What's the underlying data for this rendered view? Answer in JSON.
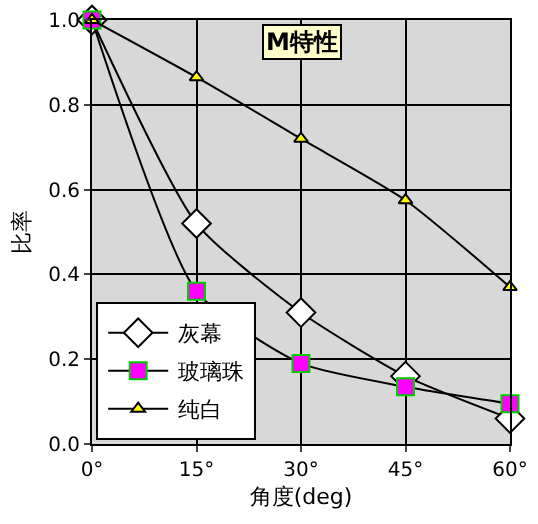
{
  "chart_data": {
    "type": "line",
    "title": "M特性",
    "xlabel": "角度(deg)",
    "ylabel": "比率",
    "x": [
      0,
      15,
      30,
      45,
      60
    ],
    "xlim": [
      0,
      60
    ],
    "xticks": [
      {
        "value": 0,
        "label": "0°"
      },
      {
        "value": 15,
        "label": "15°"
      },
      {
        "value": 30,
        "label": "30°"
      },
      {
        "value": 45,
        "label": "45°"
      },
      {
        "value": 60,
        "label": "60°"
      }
    ],
    "ylim": [
      0,
      1
    ],
    "yticks": [
      {
        "value": 0,
        "label": "0.0"
      },
      {
        "value": 0.2,
        "label": "0.2"
      },
      {
        "value": 0.4,
        "label": "0.4"
      },
      {
        "value": 0.6,
        "label": "0.6"
      },
      {
        "value": 0.8,
        "label": "0.8"
      },
      {
        "value": 1,
        "label": "1.0"
      }
    ],
    "grid": true,
    "legend": "bottom left",
    "line_style": "solid",
    "series": [
      {
        "name": "灰幕",
        "color": "#ffffff",
        "marker": "diamond",
        "values": [
          1,
          0.52,
          0.31,
          0.16,
          0.06
        ]
      },
      {
        "name": "玻璃珠",
        "color": "#ff00ff",
        "marker": "square",
        "values": [
          1,
          0.36,
          0.19,
          0.135,
          0.095
        ]
      },
      {
        "name": "纯白",
        "color": "#ffff00",
        "marker": "triangle",
        "values": [
          1,
          0.865,
          0.72,
          0.575,
          0.37
        ]
      }
    ]
  }
}
